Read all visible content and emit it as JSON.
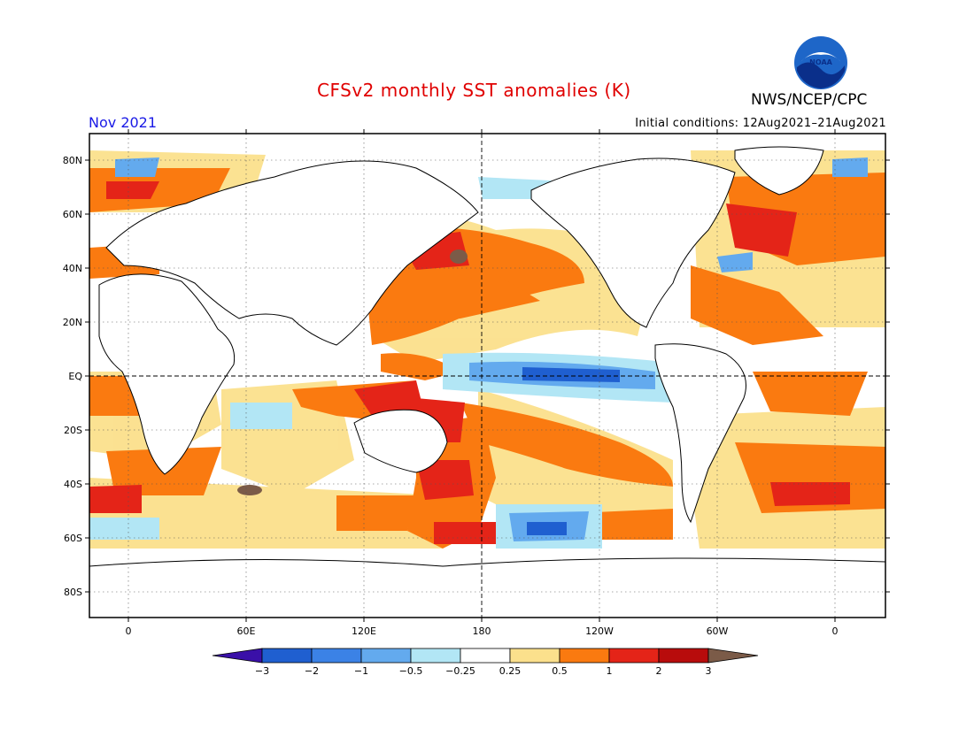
{
  "title": "CFSv2 monthly SST anomalies (K)",
  "agency": "NWS/NCEP/CPC",
  "logo_text": "NOAA",
  "period": "Nov 2021",
  "initial_conditions": "Initial conditions: 12Aug2021–21Aug2021",
  "map": {
    "projection": "equirectangular",
    "lon_ticks": [
      "0",
      "60E",
      "120E",
      "180",
      "120W",
      "60W",
      "0"
    ],
    "lat_ticks": [
      "80N",
      "60N",
      "40N",
      "20N",
      "EQ",
      "20S",
      "40S",
      "60S",
      "80S"
    ],
    "gridlines": "dotted",
    "reference_lines": [
      "equator",
      "dateline"
    ],
    "land_color": "#ffffff"
  },
  "colorbar": {
    "labels": [
      "−3",
      "−2",
      "−1",
      "−0.5",
      "−0.25",
      "0.25",
      "0.5",
      "1",
      "2",
      "3"
    ],
    "colors": [
      "#3a10a8",
      "#1f5fd0",
      "#3b82e6",
      "#63aaee",
      "#b2e6f5",
      "#ffffff",
      "#fbe08c",
      "#fa7a10",
      "#e42418",
      "#b80c0c",
      "#7b5b48"
    ]
  },
  "colors": {
    "title": "#e00000",
    "period": "#1a1ae6"
  }
}
